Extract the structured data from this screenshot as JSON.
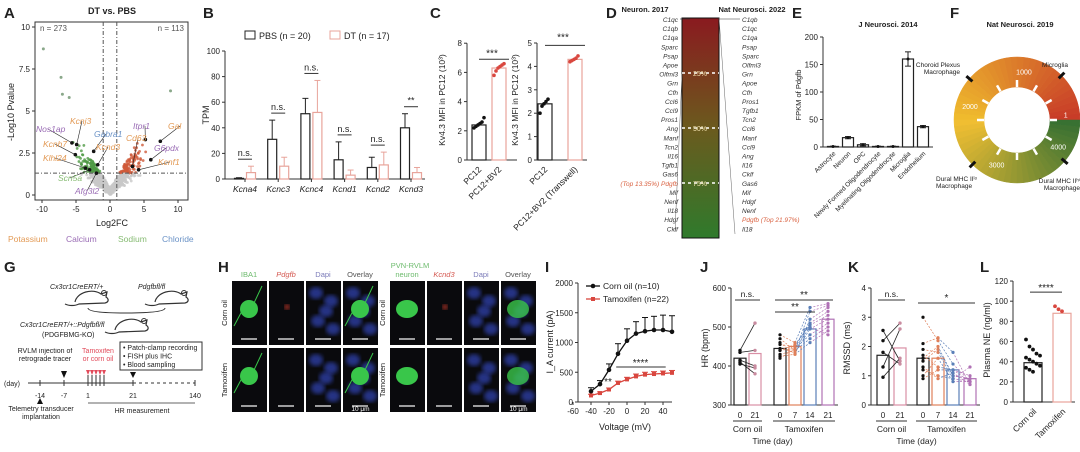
{
  "panel_labels": [
    "A",
    "B",
    "C",
    "D",
    "E",
    "F",
    "G",
    "H",
    "I",
    "J",
    "K",
    "L"
  ],
  "colors": {
    "potassium": "#e39a55",
    "calcium": "#9a6cb5",
    "sodium": "#86bb72",
    "chloride": "#6a92c6",
    "dt": "#e8a49b",
    "tam": "#d9473f",
    "black": "#222222"
  },
  "chart_data": [
    {
      "id": "A",
      "type": "scatter",
      "title": "DT vs. PBS",
      "xlabel": "Log2FC",
      "ylabel": "-Log10 Pvalue",
      "xlim": [
        -12,
        12
      ],
      "ylim": [
        -0.5,
        10.5
      ],
      "xticks": [
        "-10",
        "-5",
        "0",
        "5",
        "10"
      ],
      "yticks": [
        "0",
        "2.5",
        "5",
        "7.5",
        "10"
      ],
      "thresholds": {
        "log2fc": [
          -1,
          1
        ],
        "neglog10p": 1.3
      },
      "counts": {
        "down": "n = 273",
        "up": "n = 113"
      },
      "outliers": [
        [
          -9.8,
          8.7
        ],
        [
          -7.2,
          7.0
        ],
        [
          8.9,
          6.2
        ],
        [
          -6.0,
          5.8
        ],
        [
          -7.0,
          6.0
        ]
      ],
      "labeled_genes": [
        {
          "gene": "Nos1ap",
          "x": -5.6,
          "y": 3.1,
          "class": "calcium"
        },
        {
          "gene": "Kcnj3",
          "x": -4.9,
          "y": 3.0,
          "class": "potassium"
        },
        {
          "gene": "Gabra1",
          "x": -2.4,
          "y": 2.6,
          "class": "chloride"
        },
        {
          "gene": "Kcnh7",
          "x": -5.1,
          "y": 2.4,
          "class": "potassium"
        },
        {
          "gene": "Kcnd3",
          "x": -1.8,
          "y": 1.8,
          "class": "potassium"
        },
        {
          "gene": "Klhl24",
          "x": -3.6,
          "y": 1.6,
          "class": "potassium"
        },
        {
          "gene": "Scn5a",
          "x": -3.0,
          "y": 1.5,
          "class": "sodium"
        },
        {
          "gene": "Afg3l2",
          "x": -2.0,
          "y": 1.3,
          "class": "calcium"
        },
        {
          "gene": "Itpr1",
          "x": 5.2,
          "y": 3.3,
          "class": "calcium"
        },
        {
          "gene": "Cd63",
          "x": 3.3,
          "y": 1.7,
          "class": "potassium"
        },
        {
          "gene": "Gal",
          "x": 7.4,
          "y": 3.2,
          "class": "potassium"
        },
        {
          "gene": "G6pdx",
          "x": 6.0,
          "y": 2.1,
          "class": "calcium"
        },
        {
          "gene": "Kcnf1",
          "x": 4.2,
          "y": 1.5,
          "class": "potassium"
        }
      ],
      "legend": [
        {
          "label": "Potassium",
          "class": "potassium"
        },
        {
          "label": "Calcium",
          "class": "calcium"
        },
        {
          "label": "Sodium",
          "class": "sodium"
        },
        {
          "label": "Chloride",
          "class": "chloride"
        }
      ]
    },
    {
      "id": "B",
      "type": "bar",
      "ylabel": "TPM",
      "ylim": [
        0,
        100
      ],
      "yticks": [
        "0",
        "20",
        "40",
        "60",
        "80",
        "100"
      ],
      "categories": [
        "Kcna4",
        "Kcnc3",
        "Kcnc4",
        "Kcnd1",
        "Kcnd2",
        "Kcnd3"
      ],
      "series": [
        {
          "name": "PBS (n = 20)",
          "values": [
            0.5,
            31,
            51,
            15,
            9,
            40
          ],
          "errors": [
            0.5,
            15,
            12,
            14,
            8,
            11
          ]
        },
        {
          "name": "DT (n = 17)",
          "values": [
            5,
            10,
            52,
            3,
            11,
            5
          ],
          "errors": [
            5,
            7,
            25,
            4,
            10,
            4
          ]
        }
      ],
      "significance": [
        "n.s.",
        "n.s.",
        "n.s.",
        "n.s.",
        "n.s.",
        "**"
      ]
    },
    {
      "id": "C1",
      "type": "bar",
      "ylabel": "Kv4.3 MFI in PC12 (10³)",
      "ylim": [
        0,
        8
      ],
      "yticks": [
        "0",
        "2",
        "4",
        "6",
        "8"
      ],
      "categories": [
        "PC12",
        "PC12+BV2"
      ],
      "values": [
        2.4,
        6.3
      ],
      "points": [
        [
          2.2,
          2.3,
          2.4,
          2.5,
          2.6,
          2.9
        ],
        [
          5.8,
          6.1,
          6.3,
          6.4,
          6.5,
          6.6
        ]
      ],
      "significance": "***"
    },
    {
      "id": "C2",
      "type": "bar",
      "ylabel": "Kv4.3 MFI in PC12 (10³)",
      "ylim": [
        0,
        5
      ],
      "yticks": [
        "0",
        "1",
        "2",
        "3",
        "4",
        "5"
      ],
      "categories": [
        "PC12",
        "PC12+BV2 (Transwell)"
      ],
      "values": [
        2.4,
        4.3
      ],
      "points": [
        [
          2.0,
          2.3,
          2.4,
          2.5,
          2.6
        ],
        [
          4.2,
          4.25,
          4.3,
          4.35,
          4.45
        ]
      ],
      "significance": "***"
    },
    {
      "id": "D",
      "type": "table",
      "left_title": "Neuron. 2017",
      "right_title": "Nat Neurosci. 2022",
      "left_genes": [
        "C1qc",
        "C1qb",
        "C1qa",
        "Sparc",
        "Psap",
        "Apoe",
        "Olfml3",
        "Grn",
        "Cfh",
        "Ccl6",
        "Ccl9",
        "Pros1",
        "Ang",
        "Manf",
        "Tcn2",
        "Il16",
        "Tgfb1",
        "Gas6",
        "(Top 13.35%) Pdgfb",
        "Mif",
        "Nenf",
        "Il18",
        "Hdgf",
        "Cklf"
      ],
      "right_genes": [
        "C1qb",
        "C1qc",
        "C1qa",
        "Psap",
        "Sparc",
        "Olfml3",
        "Grn",
        "Apoe",
        "Cfh",
        "Pros1",
        "Tgfb1",
        "Tcn2",
        "Ccl6",
        "Manf",
        "Ccl9",
        "Ang",
        "Il16",
        "Cklf",
        "Gas6",
        "Mif",
        "Hdgf",
        "Nenf",
        "Pdgfb (Top 21.97%)",
        "Il18"
      ],
      "highlight_left": 18,
      "highlight_right": 22,
      "percentiles": [
        "25%",
        "50%",
        "75%"
      ]
    },
    {
      "id": "E",
      "type": "bar",
      "title": "J Neurosci. 2014",
      "ylabel": "FPKM of Pdgfb",
      "ylim": [
        0,
        200
      ],
      "yticks": [
        "0",
        "50",
        "100",
        "150",
        "200"
      ],
      "categories": [
        "Astrocyte",
        "Neuron",
        "OPC",
        "Newly Formed Oligodendrocyte",
        "Myelinating Oligodendrocyte",
        "Microglia",
        "Endothelium"
      ],
      "values": [
        1,
        17,
        4,
        1,
        1,
        160,
        37
      ],
      "errors": [
        0.5,
        2,
        2,
        0.5,
        0.5,
        13,
        2
      ]
    },
    {
      "id": "F",
      "type": "pie",
      "title": "Nat Neurosci. 2019",
      "rank_max": 4400,
      "rank_ticks": [
        "1",
        "1000",
        "2000",
        "3000",
        "4000"
      ],
      "markers": [
        {
          "label": "Microglia",
          "rank": 550
        },
        {
          "label": "Choroid Plexus Macrophage",
          "rank": 1700
        },
        {
          "label": "Dural MHC IIˡᵒ Macrophage",
          "rank": 2750
        },
        {
          "label": "Dural MHC IIʰⁱ Macrophage",
          "rank": 3900
        }
      ]
    },
    {
      "id": "I",
      "type": "line",
      "xlabel": "Voltage (mV)",
      "ylabel": "I_A current (pA)",
      "xlim": [
        -60,
        50
      ],
      "ylim": [
        0,
        2000
      ],
      "xticks": [
        "-60",
        "-40",
        "-20",
        "0",
        "20",
        "40"
      ],
      "yticks": [
        "0",
        "500",
        "1000",
        "1500",
        "2000"
      ],
      "x": [
        -40,
        -30,
        -20,
        -10,
        0,
        10,
        20,
        30,
        40,
        50
      ],
      "series": [
        {
          "name": "Corn oil (n=10)",
          "values": [
            180,
            300,
            540,
            810,
            1030,
            1150,
            1190,
            1210,
            1210,
            1180
          ],
          "errors": [
            60,
            60,
            100,
            170,
            200,
            200,
            230,
            230,
            250,
            270
          ]
        },
        {
          "name": "Tamoxifen (n=22)",
          "values": [
            110,
            150,
            210,
            320,
            380,
            430,
            460,
            470,
            480,
            490
          ],
          "errors": [
            20,
            20,
            25,
            30,
            35,
            40,
            40,
            40,
            40,
            40
          ]
        }
      ],
      "significance": [
        "**",
        "****"
      ]
    },
    {
      "id": "J",
      "type": "bar",
      "ylabel": "HR (bpm)",
      "xlabel": "Time (day)",
      "ylim": [
        300,
        600
      ],
      "yticks": [
        "300",
        "400",
        "500",
        "600"
      ],
      "groups": [
        "Corn oil",
        "Tamoxifen"
      ],
      "categories": [
        "0",
        "21",
        "0",
        "7",
        "14",
        "21"
      ],
      "values": [
        420,
        432,
        445,
        450,
        495,
        520
      ],
      "corn_oil_individuals": [
        [
          440,
          510
        ],
        [
          435,
          440
        ],
        [
          405,
          395
        ],
        [
          410,
          380
        ],
        [
          415,
          400
        ]
      ],
      "tamoxifen_individuals": [
        [
          480,
          460,
          550,
          560
        ],
        [
          470,
          440,
          540,
          555
        ],
        [
          460,
          430,
          520,
          550
        ],
        [
          455,
          450,
          510,
          540
        ],
        [
          445,
          435,
          495,
          520
        ],
        [
          440,
          445,
          480,
          510
        ],
        [
          430,
          440,
          470,
          500
        ],
        [
          425,
          430,
          460,
          490
        ],
        [
          420,
          445,
          500,
          480
        ],
        [
          440,
          455,
          505,
          530
        ]
      ],
      "significance": [
        "n.s.",
        "**",
        "**"
      ]
    },
    {
      "id": "K",
      "type": "bar",
      "ylabel": "RMSSD (ms)",
      "xlabel": "Time (day)",
      "ylim": [
        0,
        4
      ],
      "yticks": [
        "0",
        "1",
        "2",
        "3",
        "4"
      ],
      "groups": [
        "Corn oil",
        "Tamoxifen"
      ],
      "categories": [
        "0",
        "21",
        "0",
        "7",
        "14",
        "21"
      ],
      "values": [
        1.7,
        1.95,
        1.6,
        1.6,
        1.2,
        0.9
      ],
      "corn_oil_individuals": [
        [
          2.55,
          1.5
        ],
        [
          2.2,
          2.8
        ],
        [
          1.8,
          1.4
        ],
        [
          1.3,
          2.6
        ],
        [
          0.95,
          1.6
        ]
      ],
      "tamoxifen_individuals": [
        [
          3.0,
          2.2,
          1.4,
          0.8
        ],
        [
          2.1,
          2.3,
          1.8,
          0.7
        ],
        [
          1.9,
          1.8,
          0.9,
          1.3
        ],
        [
          1.7,
          1.3,
          1.2,
          0.8
        ],
        [
          1.5,
          1.9,
          1.0,
          0.9
        ],
        [
          1.3,
          0.9,
          1.1,
          0.7
        ],
        [
          1.0,
          1.6,
          0.8,
          0.8
        ],
        [
          0.9,
          1.2,
          1.2,
          1.0
        ],
        [
          1.6,
          2.0,
          1.0,
          0.9
        ],
        [
          1.2,
          1.0,
          0.9,
          0.8
        ]
      ],
      "significance": [
        "n.s.",
        "*"
      ]
    },
    {
      "id": "L",
      "type": "bar",
      "ylabel": "Plasma NE (ng/ml)",
      "ylim": [
        0,
        120
      ],
      "yticks": [
        "0",
        "20",
        "40",
        "60",
        "80",
        "100",
        "120"
      ],
      "categories": [
        "Corn oil",
        "Tamoxifen"
      ],
      "values": [
        39,
        88
      ],
      "points": [
        [
          62,
          55,
          52,
          48,
          46,
          44,
          42,
          40,
          38,
          36,
          34,
          32,
          30
        ],
        [
          95,
          92,
          90
        ]
      ],
      "significance": "****"
    }
  ],
  "schematic_G": {
    "mouse1": "Cx3cr1CreERT/+",
    "mouse2": "Pdgfbfl/fl",
    "cross": "Cx3cr1CreERT/+::Pdgfbfl/fl",
    "cross_short": "(PDGFBMG-KO)",
    "injection": "RVLM injection of retrograde tracer",
    "treatment": "Tamoxifen or corn oil",
    "procedures": [
      "• Patch-clamp recording",
      "• FISH plus IHC",
      "• Blood sampling"
    ],
    "day_label": "(day)",
    "days": [
      "-14",
      "-7",
      "1",
      "21",
      "140"
    ],
    "hr": "HR measurement",
    "telemetry": "Telemetry transducer implantation"
  },
  "images_H": {
    "left_cols": [
      "IBA1",
      "Pdgfb",
      "Dapi",
      "Overlay"
    ],
    "right_title": "PVN-RVLM",
    "right_cols": [
      "neuron",
      "Kcnd3",
      "Dapi",
      "Overlay"
    ],
    "rows": [
      "Corn oil",
      "Tamoxifen"
    ],
    "scale": "10 μm"
  }
}
